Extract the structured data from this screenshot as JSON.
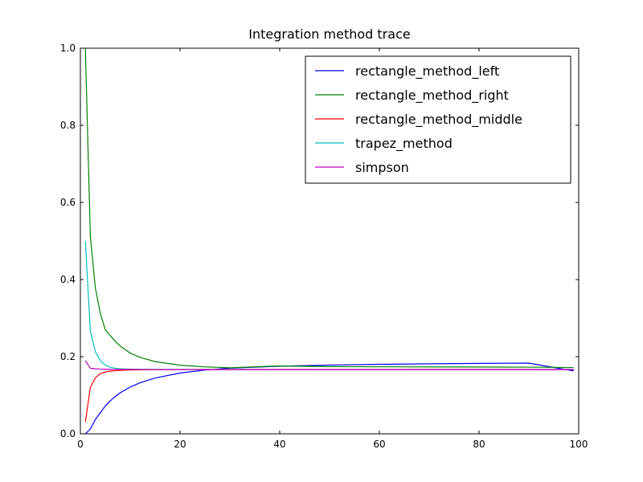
{
  "chart_data": {
    "type": "line",
    "title": "Integration method trace",
    "xlabel": "",
    "ylabel": "",
    "xlim": [
      0,
      100
    ],
    "ylim": [
      0.0,
      1.0
    ],
    "xticks": [
      0,
      20,
      40,
      60,
      80,
      100
    ],
    "yticks": [
      0.0,
      0.2,
      0.4,
      0.6,
      0.8,
      1.0
    ],
    "xtick_labels": [
      "0",
      "20",
      "40",
      "60",
      "80",
      "100"
    ],
    "ytick_labels": [
      "0.0",
      "0.2",
      "0.4",
      "0.6",
      "0.8",
      "1.0"
    ],
    "grid": false,
    "legend_position": "top-right",
    "x": [
      1,
      2,
      3,
      4,
      5,
      6,
      7,
      8,
      10,
      12,
      15,
      20,
      25,
      30,
      40,
      50,
      60,
      70,
      80,
      90,
      99
    ],
    "series": [
      {
        "name": "rectangle_method_left",
        "color": "#0000ff",
        "values": [
          0.0,
          0.0125,
          0.037,
          0.0547,
          0.072,
          0.0856,
          0.0969,
          0.1064,
          0.1213,
          0.1325,
          0.1447,
          0.1575,
          0.1652,
          0.1703,
          0.1752,
          0.1782,
          0.1802,
          0.1815,
          0.1825,
          0.1833,
          0.163
        ]
      },
      {
        "name": "rectangle_method_right",
        "color": "#008000",
        "values": [
          1.0,
          0.5125,
          0.3789,
          0.3125,
          0.27,
          0.2546,
          0.2398,
          0.2277,
          0.2093,
          0.198,
          0.1872,
          0.1779,
          0.1736,
          0.1711,
          0.176,
          0.1742,
          0.1738,
          0.1734,
          0.1731,
          0.1728,
          0.1717
        ]
      },
      {
        "name": "rectangle_method_middle",
        "color": "#ff0000",
        "values": [
          0.03,
          0.12,
          0.145,
          0.1563,
          0.16,
          0.1625,
          0.1638,
          0.1645,
          0.1655,
          0.166,
          0.1663,
          0.1665,
          0.1666,
          0.1666,
          0.1666,
          0.1666,
          0.1666,
          0.1666,
          0.1666,
          0.1666,
          0.1666
        ]
      },
      {
        "name": "trapez_method",
        "color": "#00bfbf",
        "values": [
          0.5,
          0.2656,
          0.213,
          0.1895,
          0.178,
          0.1728,
          0.1699,
          0.1685,
          0.1676,
          0.1672,
          0.167,
          0.1669,
          0.1668,
          0.1667,
          0.1667,
          0.1667,
          0.1667,
          0.1667,
          0.1667,
          0.1667,
          0.1667
        ]
      },
      {
        "name": "simpson",
        "color": "#bf00bf",
        "values": [
          0.19,
          0.17,
          0.1685,
          0.1678,
          0.1674,
          0.1672,
          0.1671,
          0.167,
          0.1669,
          0.1668,
          0.1668,
          0.1667,
          0.1667,
          0.1667,
          0.1667,
          0.1667,
          0.1667,
          0.1667,
          0.1667,
          0.1667,
          0.1667
        ]
      }
    ]
  }
}
